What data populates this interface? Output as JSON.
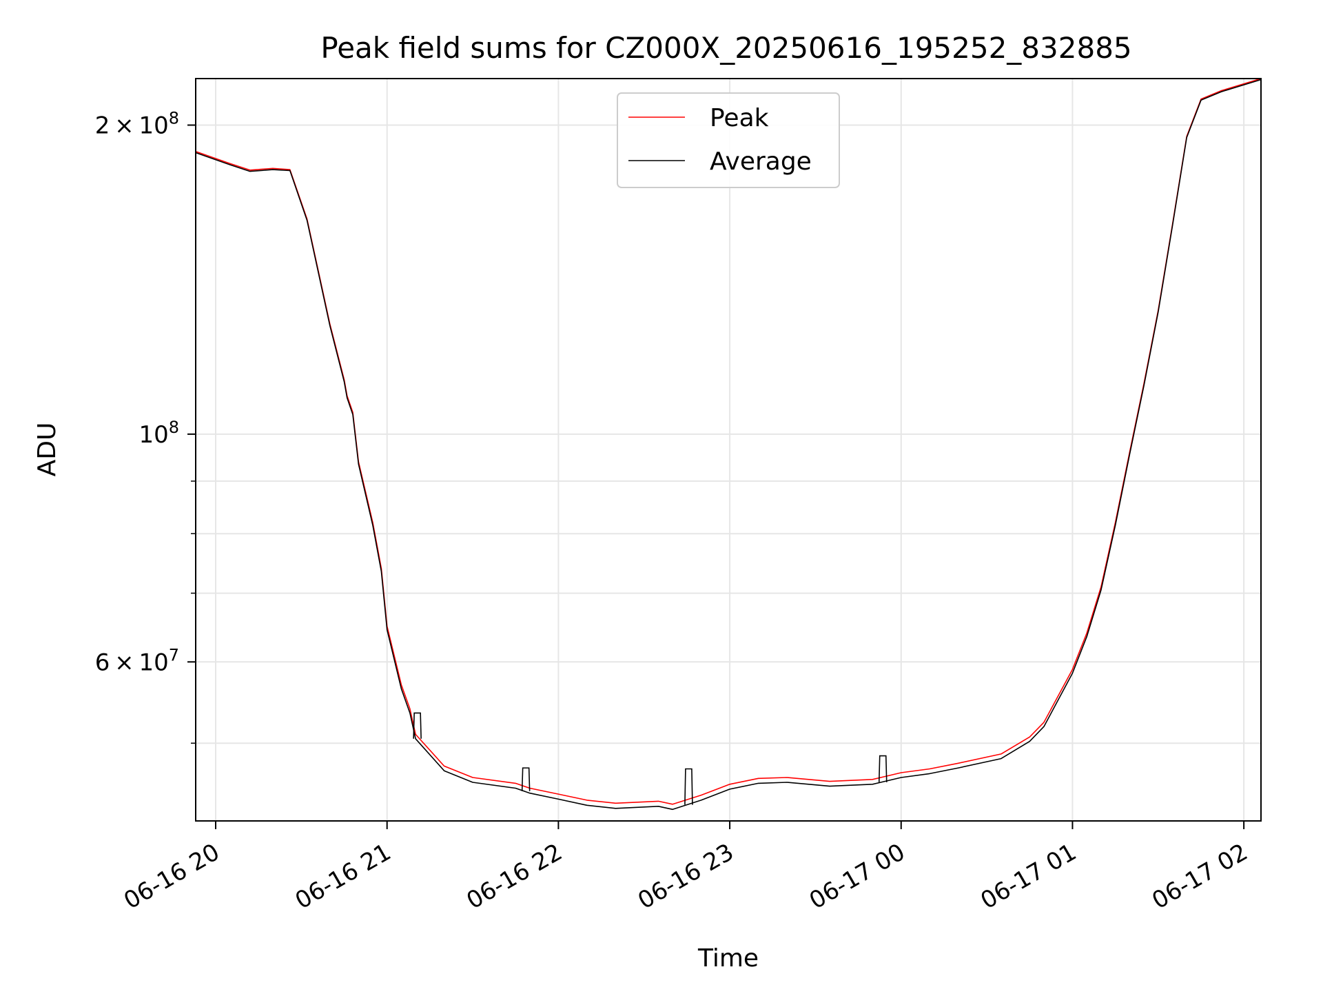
{
  "chart_data": {
    "type": "line",
    "title": "Peak field sums for CZ000X_20250616_195252_832885",
    "xlabel": "Time",
    "ylabel": "ADU",
    "y_scale": "log",
    "ylim": [
      42000000,
      222000000
    ],
    "xlim": [
      "2025-06-16 19:53",
      "2025-06-17 02:06"
    ],
    "grid": true,
    "legend_position": "upper center",
    "x_ticks": [
      {
        "t": "2025-06-16 20:00",
        "label": "06-16 20"
      },
      {
        "t": "2025-06-16 21:00",
        "label": "06-16 21"
      },
      {
        "t": "2025-06-16 22:00",
        "label": "06-16 22"
      },
      {
        "t": "2025-06-16 23:00",
        "label": "06-16 23"
      },
      {
        "t": "2025-06-17 00:00",
        "label": "06-17 00"
      },
      {
        "t": "2025-06-17 01:00",
        "label": "06-17 01"
      },
      {
        "t": "2025-06-17 02:00",
        "label": "06-17 02"
      }
    ],
    "y_ticks_major": [
      {
        "v": 200000000,
        "base": "2 × 10",
        "exp": "8"
      },
      {
        "v": 100000000,
        "base": "10",
        "exp": "8"
      },
      {
        "v": 60000000,
        "base": "6 × 10",
        "exp": "7"
      }
    ],
    "y_ticks_minor": [
      50000000,
      70000000,
      80000000,
      90000000
    ],
    "series": [
      {
        "name": "Peak",
        "color": "#ff0000",
        "points": [
          [
            "2025-06-16 19:53",
            188500000
          ],
          [
            "2025-06-16 20:05",
            183500000
          ],
          [
            "2025-06-16 20:12",
            180800000
          ],
          [
            "2025-06-16 20:20",
            181500000
          ],
          [
            "2025-06-16 20:26",
            181000000
          ],
          [
            "2025-06-16 20:32",
            162000000
          ],
          [
            "2025-06-16 20:40",
            128000000
          ],
          [
            "2025-06-16 20:45",
            113000000
          ],
          [
            "2025-06-16 20:46",
            109000000
          ],
          [
            "2025-06-16 20:48",
            105000000
          ],
          [
            "2025-06-16 20:50",
            94000000
          ],
          [
            "2025-06-16 20:55",
            82000000
          ],
          [
            "2025-06-16 20:58",
            74000000
          ],
          [
            "2025-06-16 21:00",
            65000000
          ],
          [
            "2025-06-16 21:05",
            57000000
          ],
          [
            "2025-06-16 21:08",
            54000000
          ],
          [
            "2025-06-16 21:10",
            51000000
          ],
          [
            "2025-06-16 21:20",
            47500000
          ],
          [
            "2025-06-16 21:30",
            46300000
          ],
          [
            "2025-06-16 21:45",
            45700000
          ],
          [
            "2025-06-16 21:50",
            45200000
          ],
          [
            "2025-06-16 22:00",
            44600000
          ],
          [
            "2025-06-16 22:10",
            44000000
          ],
          [
            "2025-06-16 22:20",
            43700000
          ],
          [
            "2025-06-16 22:35",
            43900000
          ],
          [
            "2025-06-16 22:40",
            43600000
          ],
          [
            "2025-06-16 22:50",
            44500000
          ],
          [
            "2025-06-16 23:00",
            45600000
          ],
          [
            "2025-06-16 23:10",
            46200000
          ],
          [
            "2025-06-16 23:20",
            46300000
          ],
          [
            "2025-06-16 23:35",
            45900000
          ],
          [
            "2025-06-16 23:50",
            46100000
          ],
          [
            "2025-06-17 00:00",
            46800000
          ],
          [
            "2025-06-17 00:10",
            47200000
          ],
          [
            "2025-06-17 00:20",
            47800000
          ],
          [
            "2025-06-17 00:35",
            48800000
          ],
          [
            "2025-06-17 00:45",
            50700000
          ],
          [
            "2025-06-17 00:50",
            52400000
          ],
          [
            "2025-06-17 01:00",
            59000000
          ],
          [
            "2025-06-17 01:05",
            64000000
          ],
          [
            "2025-06-17 01:10",
            71000000
          ],
          [
            "2025-06-17 01:15",
            82000000
          ],
          [
            "2025-06-17 01:20",
            96000000
          ],
          [
            "2025-06-17 01:25",
            112000000
          ],
          [
            "2025-06-17 01:30",
            132000000
          ],
          [
            "2025-06-17 01:35",
            160000000
          ],
          [
            "2025-06-17 01:40",
            195000000
          ],
          [
            "2025-06-17 01:45",
            212000000
          ],
          [
            "2025-06-17 01:52",
            216000000
          ],
          [
            "2025-06-17 02:06",
            222000000
          ]
        ]
      },
      {
        "name": "Average",
        "color": "#000000",
        "points": [
          [
            "2025-06-16 19:53",
            188000000
          ],
          [
            "2025-06-16 20:05",
            183000000
          ],
          [
            "2025-06-16 20:12",
            180300000
          ],
          [
            "2025-06-16 20:20",
            181000000
          ],
          [
            "2025-06-16 20:26",
            180600000
          ],
          [
            "2025-06-16 20:32",
            161500000
          ],
          [
            "2025-06-16 20:40",
            127500000
          ],
          [
            "2025-06-16 20:45",
            112500000
          ],
          [
            "2025-06-16 20:46",
            108500000
          ],
          [
            "2025-06-16 20:48",
            104500000
          ],
          [
            "2025-06-16 20:50",
            93500000
          ],
          [
            "2025-06-16 20:55",
            81500000
          ],
          [
            "2025-06-16 20:58",
            73500000
          ],
          [
            "2025-06-16 21:00",
            64500000
          ],
          [
            "2025-06-16 21:05",
            56500000
          ],
          [
            "2025-06-16 21:08",
            53500000
          ],
          [
            "2025-06-16 21:10",
            50500000
          ],
          [
            "2025-06-16 21:20",
            47000000
          ],
          [
            "2025-06-16 21:30",
            45800000
          ],
          [
            "2025-06-16 21:45",
            45200000
          ],
          [
            "2025-06-16 21:50",
            44700000
          ],
          [
            "2025-06-16 22:00",
            44100000
          ],
          [
            "2025-06-16 22:10",
            43500000
          ],
          [
            "2025-06-16 22:20",
            43200000
          ],
          [
            "2025-06-16 22:35",
            43400000
          ],
          [
            "2025-06-16 22:40",
            43100000
          ],
          [
            "2025-06-16 22:50",
            44000000
          ],
          [
            "2025-06-16 23:00",
            45100000
          ],
          [
            "2025-06-16 23:10",
            45700000
          ],
          [
            "2025-06-16 23:20",
            45800000
          ],
          [
            "2025-06-16 23:35",
            45400000
          ],
          [
            "2025-06-16 23:50",
            45600000
          ],
          [
            "2025-06-17 00:00",
            46300000
          ],
          [
            "2025-06-17 00:10",
            46700000
          ],
          [
            "2025-06-17 00:20",
            47300000
          ],
          [
            "2025-06-17 00:35",
            48300000
          ],
          [
            "2025-06-17 00:45",
            50200000
          ],
          [
            "2025-06-17 00:50",
            51900000
          ],
          [
            "2025-06-17 01:00",
            58500000
          ],
          [
            "2025-06-17 01:05",
            63500000
          ],
          [
            "2025-06-17 01:10",
            70500000
          ],
          [
            "2025-06-17 01:15",
            81500000
          ],
          [
            "2025-06-17 01:20",
            95500000
          ],
          [
            "2025-06-17 01:25",
            111500000
          ],
          [
            "2025-06-17 01:30",
            131500000
          ],
          [
            "2025-06-17 01:35",
            159500000
          ],
          [
            "2025-06-17 01:40",
            194500000
          ],
          [
            "2025-06-17 01:45",
            211500000
          ],
          [
            "2025-06-17 01:52",
            215500000
          ],
          [
            "2025-06-17 02:06",
            221500000
          ]
        ]
      }
    ],
    "spikes": [
      {
        "t": "2025-06-16 21:10",
        "peak": 53500000
      },
      {
        "t": "2025-06-16 21:48",
        "peak": 47300000
      },
      {
        "t": "2025-06-16 22:45",
        "peak": 47200000
      },
      {
        "t": "2025-06-16 23:53",
        "peak": 48600000
      }
    ]
  }
}
